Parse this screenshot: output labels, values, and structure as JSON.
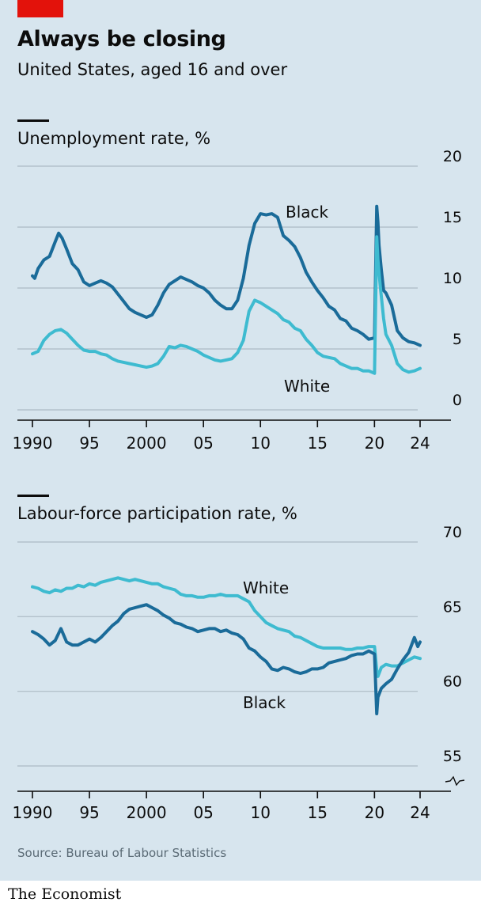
{
  "header": {
    "title": "Always be closing",
    "subtitle": "United States, aged 16 and over"
  },
  "footer": {
    "source": "Source: Bureau of Labour Statistics",
    "brand": "The Economist"
  },
  "colors": {
    "background": "#d7e5ee",
    "black_series": "#1a6b99",
    "white_series": "#3ebbd0",
    "gridline": "#b3c1cb",
    "brand_red": "#e3120b"
  },
  "chart_data": [
    {
      "type": "line",
      "title": "Unemployment rate, %",
      "xlabel": "",
      "ylabel": "",
      "xlim": [
        1990,
        2024.5
      ],
      "ylim": [
        0,
        20
      ],
      "yticks": [
        0,
        5,
        10,
        15,
        20
      ],
      "xticks": [
        1990,
        1995,
        2000,
        2005,
        2010,
        2015,
        2020,
        2024
      ],
      "xtick_labels": [
        "1990",
        "95",
        "2000",
        "05",
        "10",
        "15",
        "20",
        "24"
      ],
      "grid": true,
      "series": [
        {
          "name": "Black",
          "color": "#1a6b99",
          "x": [
            1990.0,
            1990.2,
            1990.5,
            1991.0,
            1991.5,
            1992.0,
            1992.3,
            1992.6,
            1993.0,
            1993.5,
            1994.0,
            1994.5,
            1995.0,
            1995.5,
            1996.0,
            1996.5,
            1997.0,
            1997.5,
            1998.0,
            1998.5,
            1999.0,
            1999.5,
            2000.0,
            2000.5,
            2001.0,
            2001.5,
            2002.0,
            2002.5,
            2003.0,
            2003.5,
            2004.0,
            2004.5,
            2005.0,
            2005.5,
            2006.0,
            2006.5,
            2007.0,
            2007.5,
            2008.0,
            2008.5,
            2009.0,
            2009.5,
            2010.0,
            2010.5,
            2011.0,
            2011.5,
            2012.0,
            2012.5,
            2013.0,
            2013.5,
            2014.0,
            2014.5,
            2015.0,
            2015.5,
            2016.0,
            2016.5,
            2017.0,
            2017.5,
            2018.0,
            2018.5,
            2019.0,
            2019.5,
            2020.0,
            2020.2,
            2020.3,
            2020.4,
            2020.6,
            2020.8,
            2021.0,
            2021.5,
            2022.0,
            2022.5,
            2023.0,
            2023.5,
            2024.0
          ],
          "values": [
            11.0,
            10.8,
            11.6,
            12.3,
            12.6,
            13.8,
            14.5,
            14.1,
            13.2,
            12.0,
            11.5,
            10.5,
            10.2,
            10.4,
            10.6,
            10.4,
            10.1,
            9.5,
            8.9,
            8.3,
            8.0,
            7.8,
            7.6,
            7.8,
            8.6,
            9.6,
            10.3,
            10.6,
            10.9,
            10.7,
            10.5,
            10.2,
            10.0,
            9.6,
            9.0,
            8.6,
            8.3,
            8.3,
            9.0,
            10.8,
            13.5,
            15.3,
            16.1,
            16.0,
            16.1,
            15.8,
            14.3,
            13.9,
            13.4,
            12.5,
            11.3,
            10.5,
            9.8,
            9.2,
            8.5,
            8.2,
            7.5,
            7.3,
            6.7,
            6.5,
            6.2,
            5.8,
            5.9,
            16.7,
            15.4,
            13.5,
            11.5,
            9.8,
            9.6,
            8.6,
            6.5,
            5.9,
            5.6,
            5.5,
            5.3
          ]
        },
        {
          "name": "White",
          "color": "#3ebbd0",
          "x": [
            1990.0,
            1990.5,
            1991.0,
            1991.5,
            1992.0,
            1992.5,
            1993.0,
            1993.5,
            1994.0,
            1994.5,
            1995.0,
            1995.5,
            1996.0,
            1996.5,
            1997.0,
            1997.5,
            1998.0,
            1998.5,
            1999.0,
            1999.5,
            2000.0,
            2000.5,
            2001.0,
            2001.5,
            2002.0,
            2002.5,
            2003.0,
            2003.5,
            2004.0,
            2004.5,
            2005.0,
            2005.5,
            2006.0,
            2006.5,
            2007.0,
            2007.5,
            2008.0,
            2008.5,
            2009.0,
            2009.5,
            2010.0,
            2010.5,
            2011.0,
            2011.5,
            2012.0,
            2012.5,
            2013.0,
            2013.5,
            2014.0,
            2014.5,
            2015.0,
            2015.5,
            2016.0,
            2016.5,
            2017.0,
            2017.5,
            2018.0,
            2018.5,
            2019.0,
            2019.5,
            2020.0,
            2020.2,
            2020.3,
            2020.5,
            2020.8,
            2021.0,
            2021.5,
            2022.0,
            2022.5,
            2023.0,
            2023.5,
            2024.0
          ],
          "values": [
            4.6,
            4.8,
            5.7,
            6.2,
            6.5,
            6.6,
            6.3,
            5.8,
            5.3,
            4.9,
            4.8,
            4.8,
            4.6,
            4.5,
            4.2,
            4.0,
            3.9,
            3.8,
            3.7,
            3.6,
            3.5,
            3.6,
            3.8,
            4.4,
            5.2,
            5.1,
            5.3,
            5.2,
            5.0,
            4.8,
            4.5,
            4.3,
            4.1,
            4.0,
            4.1,
            4.2,
            4.7,
            5.7,
            8.1,
            9.0,
            8.8,
            8.5,
            8.2,
            7.9,
            7.4,
            7.2,
            6.7,
            6.5,
            5.8,
            5.3,
            4.7,
            4.4,
            4.3,
            4.2,
            3.8,
            3.6,
            3.4,
            3.4,
            3.2,
            3.2,
            3.0,
            14.2,
            12.3,
            10.2,
            7.5,
            6.2,
            5.3,
            3.8,
            3.3,
            3.1,
            3.2,
            3.4
          ]
        }
      ]
    },
    {
      "type": "line",
      "title": "Labour-force participation rate, %",
      "xlabel": "",
      "ylabel": "",
      "xlim": [
        1990,
        2024.5
      ],
      "ylim": [
        55,
        70
      ],
      "yticks": [
        55,
        60,
        65,
        70
      ],
      "xticks": [
        1990,
        1995,
        2000,
        2005,
        2010,
        2015,
        2020,
        2024
      ],
      "xtick_labels": [
        "1990",
        "95",
        "2000",
        "05",
        "10",
        "15",
        "20",
        "24"
      ],
      "axis_break": true,
      "grid": true,
      "series": [
        {
          "name": "White",
          "color": "#3ebbd0",
          "x": [
            1990.0,
            1990.5,
            1991.0,
            1991.5,
            1992.0,
            1992.5,
            1993.0,
            1993.5,
            1994.0,
            1994.5,
            1995.0,
            1995.5,
            1996.0,
            1996.5,
            1997.0,
            1997.5,
            1998.0,
            1998.5,
            1999.0,
            1999.5,
            2000.0,
            2000.5,
            2001.0,
            2001.5,
            2002.0,
            2002.5,
            2003.0,
            2003.5,
            2004.0,
            2004.5,
            2005.0,
            2005.5,
            2006.0,
            2006.5,
            2007.0,
            2007.5,
            2008.0,
            2008.5,
            2009.0,
            2009.5,
            2010.0,
            2010.5,
            2011.0,
            2011.5,
            2012.0,
            2012.5,
            2013.0,
            2013.5,
            2014.0,
            2014.5,
            2015.0,
            2015.5,
            2016.0,
            2016.5,
            2017.0,
            2017.5,
            2018.0,
            2018.5,
            2019.0,
            2019.5,
            2020.0,
            2020.2,
            2020.3,
            2020.6,
            2021.0,
            2021.5,
            2022.0,
            2022.5,
            2023.0,
            2023.5,
            2024.0
          ],
          "values": [
            67.0,
            66.9,
            66.7,
            66.6,
            66.8,
            66.7,
            66.9,
            66.9,
            67.1,
            67.0,
            67.2,
            67.1,
            67.3,
            67.4,
            67.5,
            67.6,
            67.5,
            67.4,
            67.5,
            67.4,
            67.3,
            67.2,
            67.2,
            67.0,
            66.9,
            66.8,
            66.5,
            66.4,
            66.4,
            66.3,
            66.3,
            66.4,
            66.4,
            66.5,
            66.4,
            66.4,
            66.4,
            66.2,
            66.0,
            65.4,
            65.0,
            64.6,
            64.4,
            64.2,
            64.1,
            64.0,
            63.7,
            63.6,
            63.4,
            63.2,
            63.0,
            62.9,
            62.9,
            62.9,
            62.9,
            62.8,
            62.8,
            62.9,
            62.9,
            63.0,
            63.0,
            61.4,
            61.0,
            61.6,
            61.8,
            61.7,
            61.7,
            61.9,
            62.1,
            62.3,
            62.2
          ]
        },
        {
          "name": "Black",
          "color": "#1a6b99",
          "x": [
            1990.0,
            1990.5,
            1991.0,
            1991.5,
            1992.0,
            1992.5,
            1993.0,
            1993.5,
            1994.0,
            1994.5,
            1995.0,
            1995.5,
            1996.0,
            1996.5,
            1997.0,
            1997.5,
            1998.0,
            1998.5,
            1999.0,
            1999.5,
            2000.0,
            2000.5,
            2001.0,
            2001.5,
            2002.0,
            2002.5,
            2003.0,
            2003.5,
            2004.0,
            2004.5,
            2005.0,
            2005.5,
            2006.0,
            2006.5,
            2007.0,
            2007.5,
            2008.0,
            2008.5,
            2009.0,
            2009.5,
            2010.0,
            2010.5,
            2011.0,
            2011.5,
            2012.0,
            2012.5,
            2013.0,
            2013.5,
            2014.0,
            2014.5,
            2015.0,
            2015.5,
            2016.0,
            2016.5,
            2017.0,
            2017.5,
            2018.0,
            2018.5,
            2019.0,
            2019.5,
            2020.0,
            2020.2,
            2020.3,
            2020.6,
            2021.0,
            2021.5,
            2022.0,
            2022.5,
            2023.0,
            2023.2,
            2023.5,
            2023.8,
            2024.0
          ],
          "values": [
            64.0,
            63.8,
            63.5,
            63.1,
            63.4,
            64.2,
            63.3,
            63.1,
            63.1,
            63.3,
            63.5,
            63.3,
            63.6,
            64.0,
            64.4,
            64.7,
            65.2,
            65.5,
            65.6,
            65.7,
            65.8,
            65.6,
            65.4,
            65.1,
            64.9,
            64.6,
            64.5,
            64.3,
            64.2,
            64.0,
            64.1,
            64.2,
            64.2,
            64.0,
            64.1,
            63.9,
            63.8,
            63.5,
            62.9,
            62.7,
            62.3,
            62.0,
            61.5,
            61.4,
            61.6,
            61.5,
            61.3,
            61.2,
            61.3,
            61.5,
            61.5,
            61.6,
            61.9,
            62.0,
            62.1,
            62.2,
            62.4,
            62.5,
            62.5,
            62.7,
            62.5,
            58.5,
            59.6,
            60.2,
            60.5,
            60.8,
            61.5,
            62.1,
            62.6,
            63.0,
            63.6,
            63.0,
            63.3
          ]
        }
      ]
    }
  ]
}
